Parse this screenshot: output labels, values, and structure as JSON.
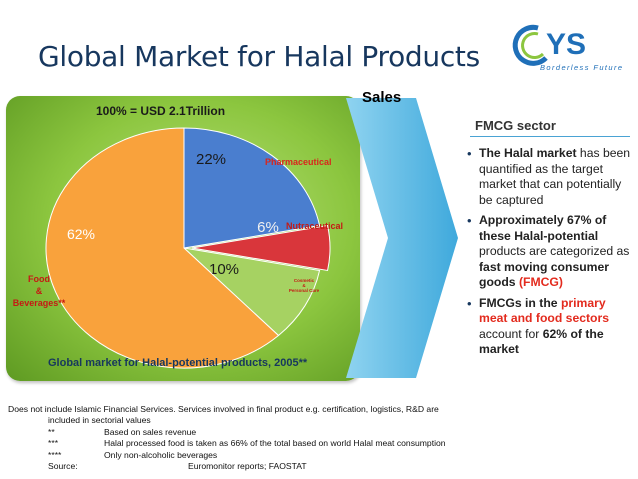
{
  "title": "Global Market for Halal Products",
  "logo": {
    "mark": "AYS",
    "tagline": "Borderless Future"
  },
  "sales_label": "Sales",
  "chart_data": {
    "type": "pie",
    "title": "100% = USD 2.1Trillion",
    "caption": "Global market for Halal-potential products, 2005**",
    "slices": [
      {
        "label": "Pharmaceutical",
        "value": 22,
        "value_label": "22%",
        "color": "#4a7ecf"
      },
      {
        "label": "Nutraceutical",
        "value": 6,
        "value_label": "6%",
        "color": "#d9363b"
      },
      {
        "label": "Cosmetic & Personal Care",
        "value": 10,
        "value_label": "10%",
        "color": "#a6d262"
      },
      {
        "label": "Food & Beverages**",
        "value": 62,
        "value_label": "62%",
        "color": "#f9a23c"
      }
    ]
  },
  "fmcg": {
    "title": "FMCG sector",
    "bullets": [
      {
        "parts": [
          {
            "text": "The Halal market",
            "style": "b"
          },
          {
            "text": " has been quantified as the target market that can potentially be captured",
            "style": ""
          }
        ]
      },
      {
        "parts": [
          {
            "text": "Approximately 67% of these Halal-potential",
            "style": "b"
          },
          {
            "text": " products are categorized as ",
            "style": ""
          },
          {
            "text": "fast moving consumer goods ",
            "style": "b"
          },
          {
            "text": "(FMCG)",
            "style": "red"
          }
        ]
      },
      {
        "parts": [
          {
            "text": "FMCGs in the ",
            "style": "b"
          },
          {
            "text": "primary meat and food sectors",
            "style": "red"
          },
          {
            "text": " account for ",
            "style": ""
          },
          {
            "text": "62% of the market",
            "style": "b"
          }
        ]
      }
    ]
  },
  "footnotes": {
    "line1": "Does not include Islamic Financial Services. Services involved in final product e.g. certification, logistics, R&D are",
    "line2": "included in sectorial values",
    "rows": [
      {
        "key": "**",
        "text": "Based on sales revenue"
      },
      {
        "key": "***",
        "text": "Halal processed food is taken as 66% of the total based on world Halal meat consumption"
      },
      {
        "key": "****",
        "text": "Only non-alcoholic beverages"
      }
    ],
    "source_key": "Source:",
    "source_text": "Euromonitor reports; FAOSTAT"
  },
  "colors": {
    "title": "#17375e",
    "panel": "#8cc63f",
    "arrow": "#5bc0e8",
    "accent_red": "#e32b1e"
  }
}
